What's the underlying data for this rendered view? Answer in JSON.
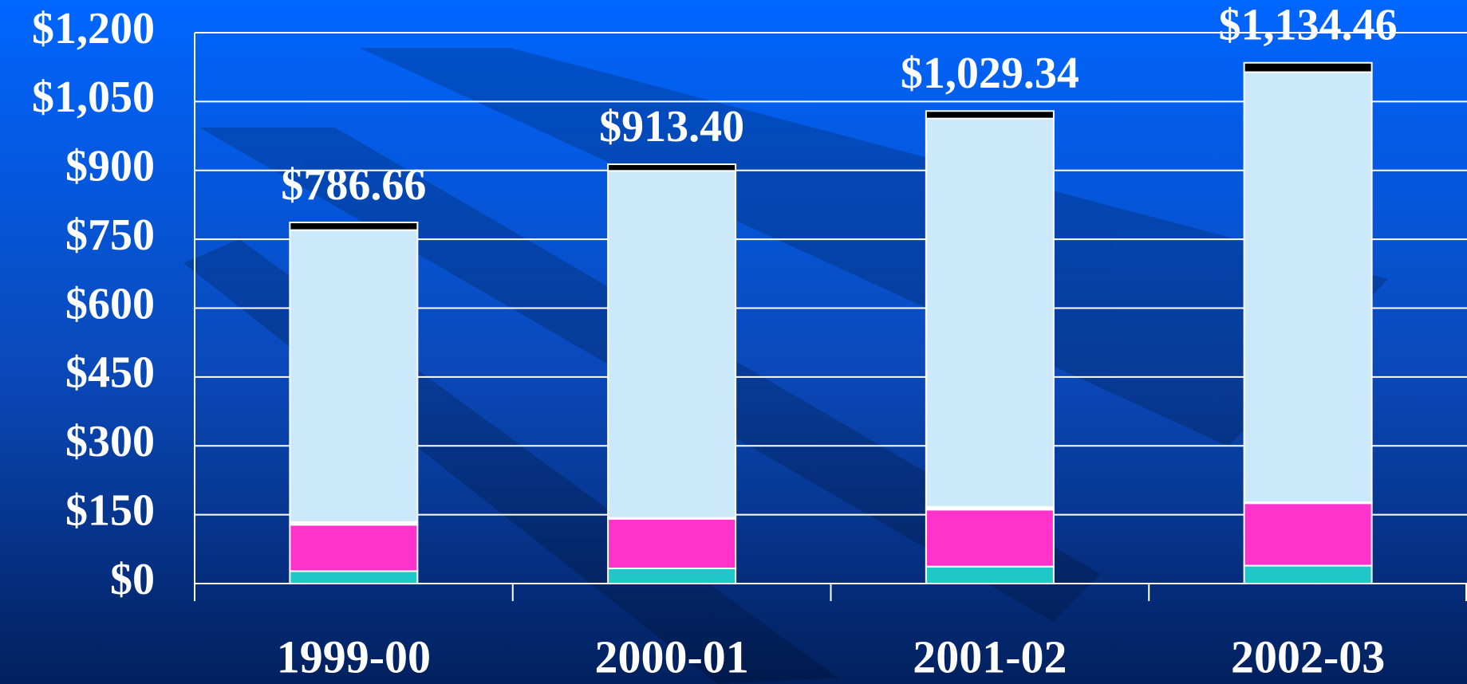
{
  "chart_data": {
    "type": "stacked_bar",
    "categories": [
      "1999-00",
      "2000-01",
      "2001-02",
      "2002-03"
    ],
    "series": [
      {
        "color": "#1fc8c8",
        "values": [
          27,
          33,
          37,
          39
        ]
      },
      {
        "color": "#ff33cc",
        "values": [
          101,
          108,
          124,
          136
        ]
      },
      {
        "color": "#ffffff",
        "values": [
          6,
          2,
          6,
          2
        ]
      },
      {
        "color": "#cce9fb",
        "values": [
          636,
          756,
          846,
          937
        ]
      },
      {
        "color": "#000000",
        "values": [
          16.66,
          14.4,
          16.34,
          20.46
        ]
      }
    ],
    "totals": [
      786.66,
      913.4,
      1029.34,
      1134.46
    ],
    "total_labels": [
      "$786.66",
      "$913.40",
      "$1,029.34",
      "$1,134.46"
    ],
    "ylim": [
      0,
      1200
    ],
    "yticks": [
      {
        "value": 0,
        "label": "$0"
      },
      {
        "value": 150,
        "label": "$150"
      },
      {
        "value": 300,
        "label": "$300"
      },
      {
        "value": 450,
        "label": "$450"
      },
      {
        "value": 600,
        "label": "$600"
      },
      {
        "value": 750,
        "label": "$750"
      },
      {
        "value": 900,
        "label": "$900"
      },
      {
        "value": 1050,
        "label": "$1,050"
      },
      {
        "value": 1200,
        "label": "$1,200"
      }
    ],
    "grid": true
  }
}
